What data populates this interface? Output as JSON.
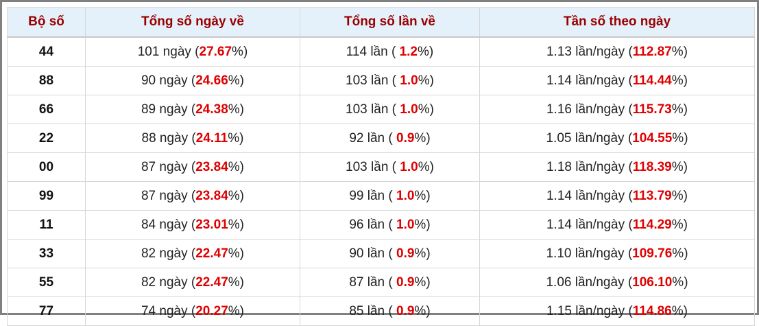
{
  "table": {
    "header": [
      "Bộ số",
      "Tổng số ngày về",
      "Tổng số lần về",
      "Tần số theo ngày"
    ],
    "rows": [
      [
        "44",
        [
          "101 ngày (",
          "27.67",
          "%)"
        ],
        [
          "114 lần ( ",
          "1.2",
          "%)"
        ],
        [
          "1.13 lần/ngày (",
          "112.87",
          "%)"
        ]
      ],
      [
        "88",
        [
          "90 ngày (",
          "24.66",
          "%)"
        ],
        [
          "103 lần ( ",
          "1.0",
          "%)"
        ],
        [
          "1.14 lần/ngày (",
          "114.44",
          "%)"
        ]
      ],
      [
        "66",
        [
          "89 ngày (",
          "24.38",
          "%)"
        ],
        [
          "103 lần ( ",
          "1.0",
          "%)"
        ],
        [
          "1.16 lần/ngày (",
          "115.73",
          "%)"
        ]
      ],
      [
        "22",
        [
          "88 ngày (",
          "24.11",
          "%)"
        ],
        [
          "92 lần ( ",
          "0.9",
          "%)"
        ],
        [
          "1.05 lần/ngày (",
          "104.55",
          "%)"
        ]
      ],
      [
        "00",
        [
          "87 ngày (",
          "23.84",
          "%)"
        ],
        [
          "103 lần ( ",
          "1.0",
          "%)"
        ],
        [
          "1.18 lần/ngày (",
          "118.39",
          "%)"
        ]
      ],
      [
        "99",
        [
          "87 ngày (",
          "23.84",
          "%)"
        ],
        [
          "99 lần ( ",
          "1.0",
          "%)"
        ],
        [
          "1.14 lần/ngày (",
          "113.79",
          "%)"
        ]
      ],
      [
        "11",
        [
          "84 ngày (",
          "23.01",
          "%)"
        ],
        [
          "96 lần ( ",
          "1.0",
          "%)"
        ],
        [
          "1.14 lần/ngày (",
          "114.29",
          "%)"
        ]
      ],
      [
        "33",
        [
          "82 ngày (",
          "22.47",
          "%)"
        ],
        [
          "90 lần ( ",
          "0.9",
          "%)"
        ],
        [
          "1.10 lần/ngày (",
          "109.76",
          "%)"
        ]
      ],
      [
        "55",
        [
          "82 ngày (",
          "22.47",
          "%)"
        ],
        [
          "87 lần ( ",
          "0.9",
          "%)"
        ],
        [
          "1.06 lần/ngày (",
          "106.10",
          "%)"
        ]
      ],
      [
        "77",
        [
          "74 ngày (",
          "20.27",
          "%)"
        ],
        [
          "85 lần ( ",
          "0.9",
          "%)"
        ],
        [
          "1.15 lần/ngày (",
          "114.86",
          "%)"
        ]
      ]
    ]
  }
}
